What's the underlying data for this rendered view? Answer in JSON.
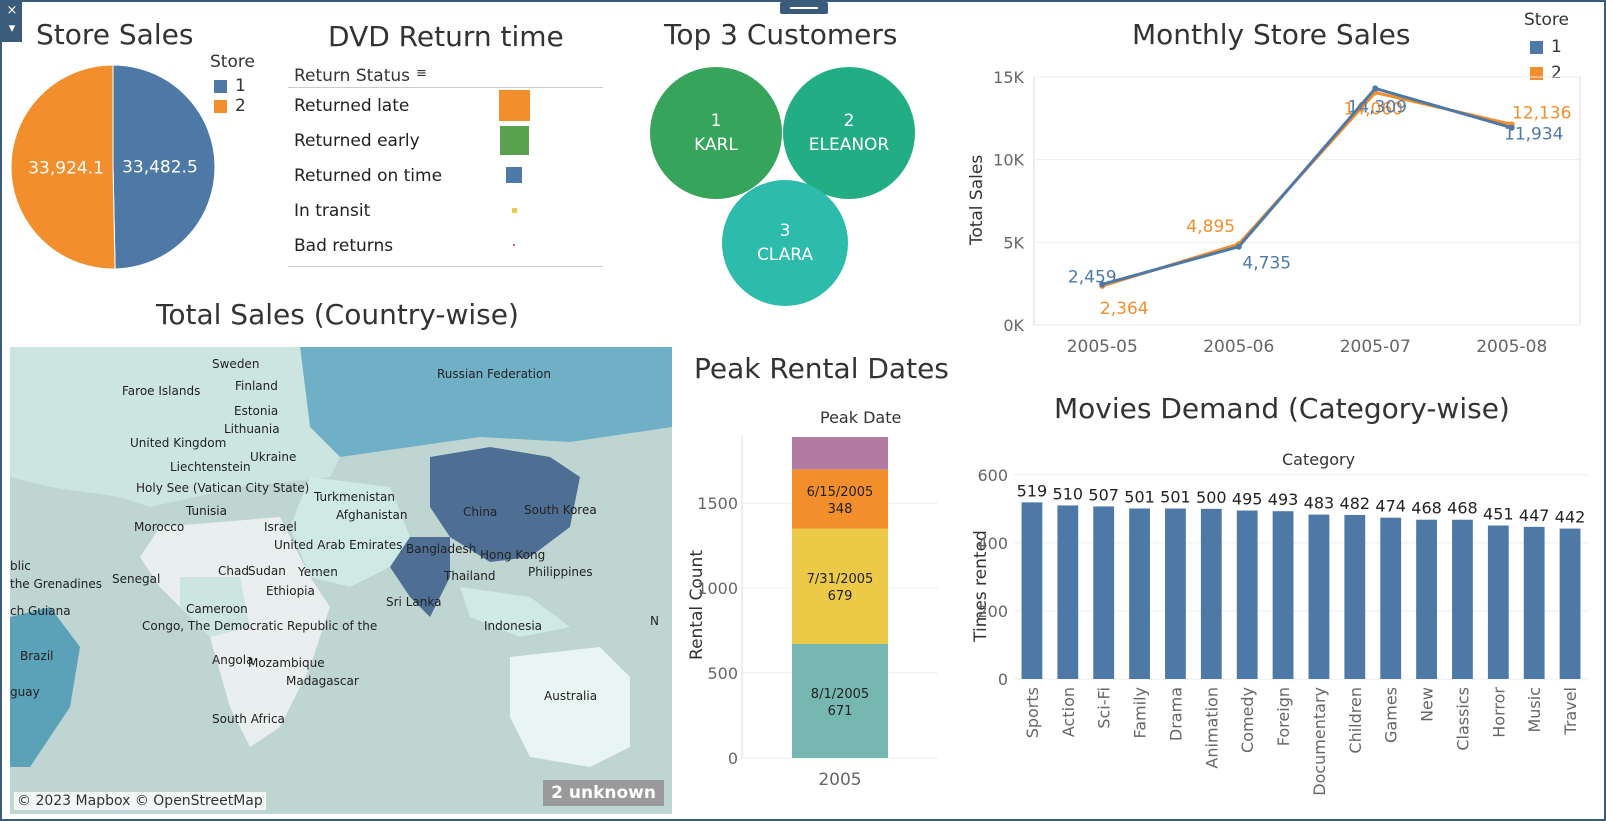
{
  "controls": {
    "close_glyph": "×",
    "menu_glyph": "▾"
  },
  "colors": {
    "store1": "#4e79a7",
    "store2": "#f28e2b",
    "frame": "#3b5b7a"
  },
  "store_sales": {
    "title": "Store Sales",
    "legend_title": "Store",
    "legend": [
      {
        "label": "1",
        "color": "#4e79a7"
      },
      {
        "label": "2",
        "color": "#f28e2b"
      }
    ],
    "slices": [
      {
        "label": "33,482.5",
        "value": 33482.5,
        "color": "#4e79a7"
      },
      {
        "label": "33,924.1",
        "value": 33924.1,
        "color": "#f28e2b"
      }
    ]
  },
  "dvd_return": {
    "title": "DVD Return time",
    "header": "Return Status",
    "sort_glyph": "≡",
    "rows": [
      {
        "label": "Returned late",
        "size": 1.0,
        "color": "#f28e2b"
      },
      {
        "label": "Returned early",
        "size": 0.95,
        "color": "#59a14f"
      },
      {
        "label": "Returned on time",
        "size": 0.5,
        "color": "#4e79a7"
      },
      {
        "label": "In transit",
        "size": 0.15,
        "color": "#edc948"
      },
      {
        "label": "Bad returns",
        "size": 0.05,
        "color": "#e15759"
      }
    ]
  },
  "top_customers": {
    "title": "Top 3 Customers",
    "customers": [
      {
        "rank": "1",
        "name": "KARL",
        "color": "#36a45a"
      },
      {
        "rank": "2",
        "name": "ELEANOR",
        "color": "#23ad84"
      },
      {
        "rank": "3",
        "name": "CLARA",
        "color": "#2dbbab"
      }
    ]
  },
  "monthly_sales": {
    "title": "Monthly Store Sales",
    "legend_title": "Store",
    "legend": [
      {
        "label": "1",
        "color": "#4e79a7"
      },
      {
        "label": "2",
        "color": "#f28e2b"
      }
    ],
    "ylabel": "Total Sales",
    "yticks": [
      "0K",
      "5K",
      "10K",
      "15K"
    ]
  },
  "map": {
    "title": "Total Sales (Country-wise)",
    "attribution": "© 2023 Mapbox © OpenStreetMap",
    "unknown_badge": "2 unknown",
    "labels": [
      "Sweden",
      "Finland",
      "Faroe Islands",
      "Estonia",
      "Lithuania",
      "United Kingdom",
      "Liechtenstein",
      "Ukraine",
      "Holy See (Vatican City State)",
      "Tunisia",
      "Turkmenistan",
      "Afghanistan",
      "Russian Federation",
      "China",
      "South Korea",
      "Morocco",
      "Israel",
      "United Arab Emirates",
      "Bangladesh",
      "Hong Kong",
      "Philippines",
      "Thailand",
      "Senegal",
      "Chad",
      "Sudan",
      "Yemen",
      "Ethiopia",
      "Sri Lanka",
      "Cameroon",
      "Congo, The Democratic Republic of the",
      "Indonesia",
      "Angola",
      "Mozambique",
      "Madagascar",
      "Brazil",
      "South Africa",
      "Australia",
      "blic",
      "the Grenadines",
      "ch Guiana",
      "guay",
      "N"
    ]
  },
  "peak_rental": {
    "title": "Peak Rental Dates",
    "subtitle": "Peak Date",
    "ylabel": "Rental Count",
    "xlabel_value": "2005",
    "yticks": [
      "0",
      "500",
      "1000",
      "1500"
    ]
  },
  "movies_demand": {
    "title": "Movies Demand (Category-wise)",
    "subtitle": "Category",
    "ylabel": "Times rented",
    "yticks": [
      "0",
      "200",
      "400",
      "600"
    ]
  },
  "chart_data": [
    {
      "type": "pie",
      "title": "Store Sales",
      "legend_title": "Store",
      "categories": [
        "1",
        "2"
      ],
      "values": [
        33482.5,
        33924.1
      ]
    },
    {
      "type": "line",
      "title": "Monthly Store Sales",
      "ylabel": "Total Sales",
      "x": [
        "2005-05",
        "2005-06",
        "2005-07",
        "2005-08"
      ],
      "ylim": [
        0,
        15000
      ],
      "grid": true,
      "legend_position": "top-right",
      "series": [
        {
          "name": "1",
          "color": "#4e79a7",
          "values": [
            2459,
            4735,
            14309,
            11934
          ],
          "labels": [
            "2,459",
            "4,735",
            "14,309",
            "11,934"
          ]
        },
        {
          "name": "2",
          "color": "#f28e2b",
          "values": [
            2364,
            4895,
            14060,
            12136
          ],
          "labels": [
            "2,364",
            "4,895",
            "14,060",
            "12,136"
          ]
        }
      ]
    },
    {
      "type": "bar",
      "title": "Peak Rental Dates",
      "subtitle": "Peak Date",
      "ylabel": "Rental Count",
      "categories": [
        "2005"
      ],
      "ylim": [
        0,
        1900
      ],
      "stacked": true,
      "series": [
        {
          "label": "8/1/2005",
          "values": [
            671
          ],
          "color": "#76b7b2"
        },
        {
          "label": "7/31/2005",
          "values": [
            679
          ],
          "color": "#edc948"
        },
        {
          "label": "6/15/2005",
          "values": [
            348
          ],
          "color": "#f28e2b"
        },
        {
          "values": [
            190
          ],
          "color": "#b07aa1"
        }
      ]
    },
    {
      "type": "bar",
      "title": "Movies Demand (Category-wise)",
      "subtitle": "Category",
      "ylabel": "Times rented",
      "ylim": [
        0,
        600
      ],
      "categories": [
        "Sports",
        "Action",
        "Sci-Fi",
        "Family",
        "Drama",
        "Animation",
        "Comedy",
        "Foreign",
        "Documentary",
        "Children",
        "Games",
        "New",
        "Classics",
        "Horror",
        "Music",
        "Travel"
      ],
      "values": [
        519,
        510,
        507,
        501,
        501,
        500,
        495,
        493,
        483,
        482,
        474,
        468,
        468,
        451,
        447,
        442
      ]
    }
  ]
}
